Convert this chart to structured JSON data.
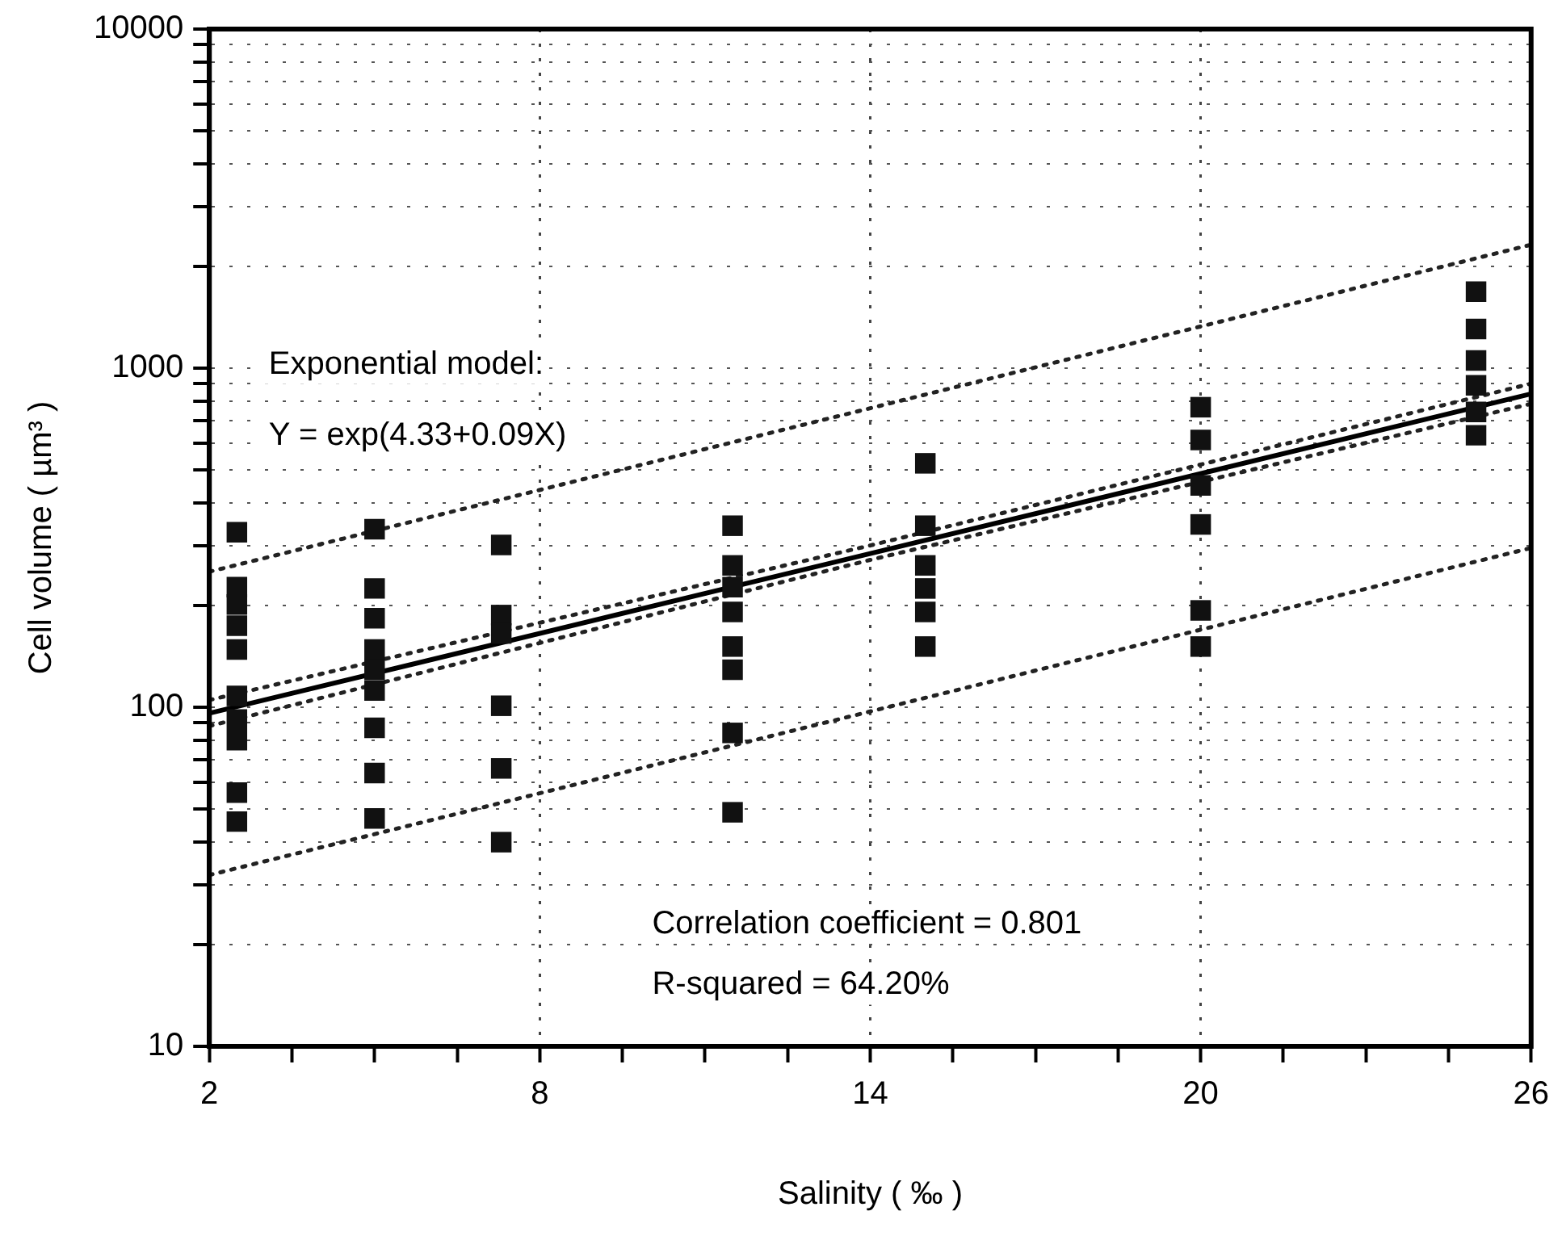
{
  "chart_data": {
    "type": "scatter",
    "xlabel": "Salinity ( ‰ )",
    "ylabel": "Cell volume ( µm³ )",
    "annotations": [
      "Exponential model:",
      "Y = exp(4.33+0.09X)",
      "Correlation coefficient = 0.801",
      "R-squared = 64.20%"
    ],
    "log": "y",
    "grid": true,
    "legend": false,
    "marker": "square",
    "xlim": [
      2,
      26
    ],
    "xticks": [
      2,
      {
        "value": 3.5,
        "label": null
      },
      {
        "value": 5,
        "label": null
      },
      {
        "value": 6.5,
        "label": null
      },
      8,
      {
        "value": 9.5,
        "label": null
      },
      {
        "value": 11,
        "label": null
      },
      {
        "value": 12.5,
        "label": null
      },
      14,
      {
        "value": 15.5,
        "label": null
      },
      {
        "value": 17,
        "label": null
      },
      {
        "value": 18.5,
        "label": null
      },
      20,
      {
        "value": 21.5,
        "label": null
      },
      {
        "value": 23,
        "label": null
      },
      {
        "value": 24.5,
        "label": null
      },
      26
    ],
    "ylim": [
      10,
      10000
    ],
    "yticks": [
      10,
      {
        "value": 20,
        "label": null
      },
      {
        "value": 30,
        "label": null
      },
      {
        "value": 40,
        "label": null
      },
      {
        "value": 50,
        "label": null
      },
      {
        "value": 60,
        "label": null
      },
      {
        "value": 70,
        "label": null
      },
      {
        "value": 80,
        "label": null
      },
      {
        "value": 90,
        "label": null
      },
      100,
      {
        "value": 200,
        "label": null
      },
      {
        "value": 300,
        "label": null
      },
      {
        "value": 400,
        "label": null
      },
      {
        "value": 500,
        "label": null
      },
      {
        "value": 600,
        "label": null
      },
      {
        "value": 700,
        "label": null
      },
      {
        "value": 800,
        "label": null
      },
      {
        "value": 900,
        "label": null
      },
      1000,
      {
        "value": 2000,
        "label": null
      },
      {
        "value": 3000,
        "label": null
      },
      {
        "value": 4000,
        "label": null
      },
      {
        "value": 5000,
        "label": null
      },
      {
        "value": 6000,
        "label": null
      },
      {
        "value": 7000,
        "label": null
      },
      {
        "value": 8000,
        "label": null
      },
      {
        "value": 9000,
        "label": null
      },
      10000
    ],
    "series": [
      {
        "color": "#111111",
        "x": [
          2.5,
          2.5,
          2.5,
          2.5,
          2.5,
          2.5,
          2.5,
          2.5,
          2.5,
          2.5,
          5,
          5,
          5,
          5,
          5,
          5,
          5,
          5,
          5,
          7.3,
          7.3,
          7.3,
          7.3,
          7.3,
          7.3,
          11.5,
          11.5,
          11.5,
          11.5,
          11.5,
          11.5,
          11.5,
          11.5,
          15,
          15,
          15,
          15,
          15,
          15,
          20,
          20,
          20,
          20,
          20,
          20,
          25,
          25,
          25,
          25,
          25,
          25
        ],
        "values": [
          328,
          226,
          201,
          174,
          148,
          108,
          92,
          80,
          56,
          46,
          335,
          224,
          183,
          148,
          129,
          112,
          87,
          64,
          47,
          301,
          187,
          165,
          101,
          66,
          40,
          343,
          262,
          226,
          191,
          151,
          129,
          84,
          49,
          524,
          343,
          262,
          224,
          191,
          151,
          767,
          614,
          451,
          346,
          193,
          151,
          1682,
          1304,
          1054,
          890,
          743,
          634
        ]
      },
      {
        "type": "line",
        "color": "#000000",
        "marker": "none",
        "line_style": "solid",
        "x": [
          2,
          26
        ],
        "values": [
          96,
          840
        ]
      },
      {
        "type": "line",
        "color": "#222222",
        "marker": "none",
        "line_style": "dotted",
        "x": [
          2,
          14,
          26
        ],
        "values": [
          105,
          300,
          900
        ]
      },
      {
        "type": "line",
        "color": "#222222",
        "marker": "none",
        "line_style": "dotted",
        "x": [
          2,
          14,
          26
        ],
        "values": [
          88,
          272,
          785
        ]
      },
      {
        "type": "line",
        "color": "#222222",
        "marker": "none",
        "line_style": "dotted",
        "x": [
          2,
          26
        ],
        "values": [
          251,
          2312
        ]
      },
      {
        "type": "line",
        "color": "#222222",
        "marker": "none",
        "line_style": "dotted",
        "x": [
          2,
          26
        ],
        "values": [
          32,
          295
        ]
      }
    ]
  }
}
